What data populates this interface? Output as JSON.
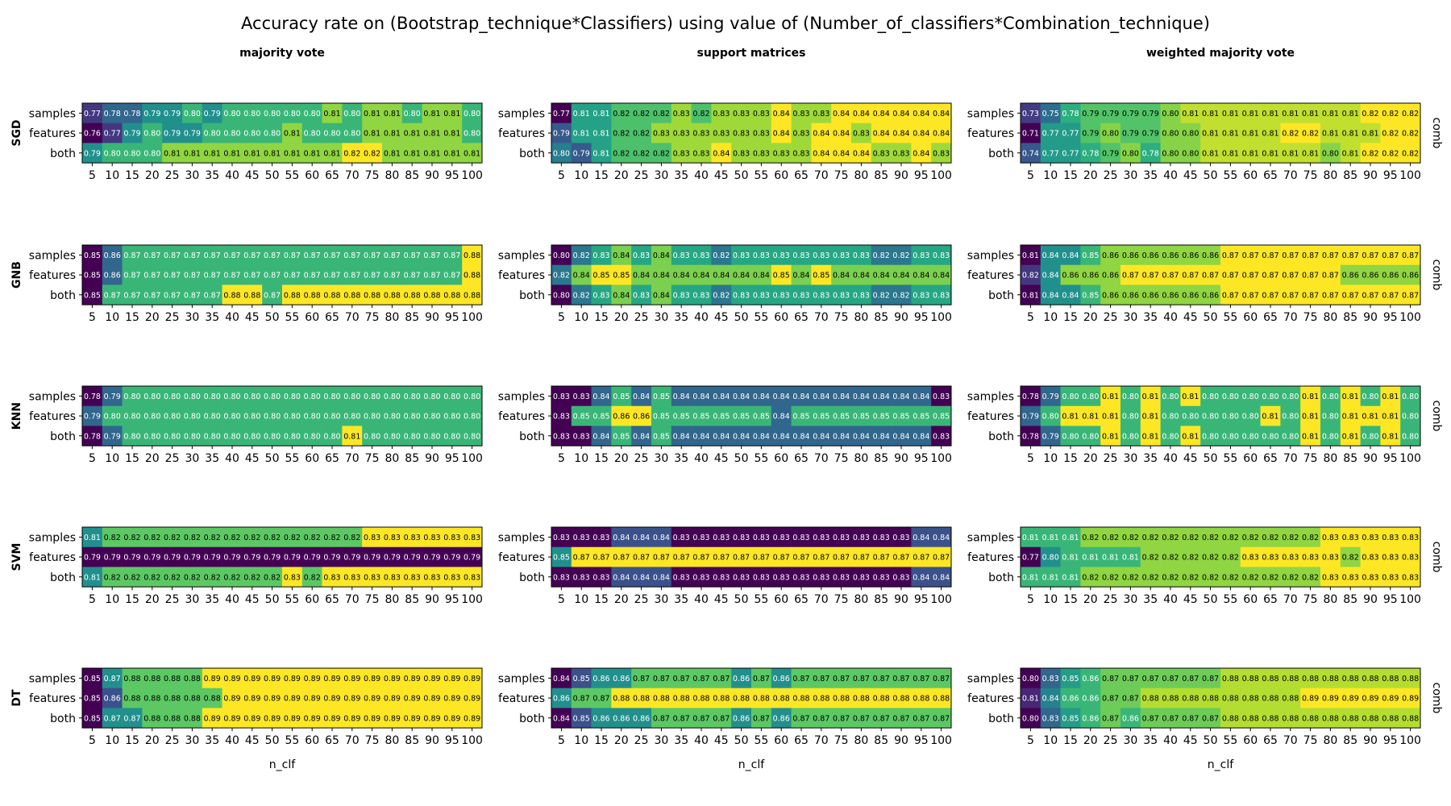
{
  "figure": {
    "title": "Accuracy rate on (Bootstrap_technique*Classifiers) using value of (Number_of_classifiers*Combination_technique)",
    "right_label": "comb",
    "colormap": "viridis"
  },
  "chart_data": {
    "type": "heatmap",
    "columns": [
      "majority vote",
      "support matrices",
      "weighted majority vote"
    ],
    "rows": [
      "SGD",
      "GNB",
      "KNN",
      "SVM",
      "DT"
    ],
    "y_categories": [
      "samples",
      "features",
      "both"
    ],
    "x_categories": [
      "5",
      "10",
      "15",
      "20",
      "25",
      "30",
      "35",
      "40",
      "45",
      "50",
      "55",
      "60",
      "65",
      "70",
      "75",
      "80",
      "85",
      "90",
      "95",
      "100"
    ],
    "xlabel": "n_clf",
    "panels": [
      {
        "row": "SGD",
        "column": "majority vote",
        "values": [
          [
            0.77,
            0.78,
            0.78,
            0.79,
            0.79,
            0.8,
            0.79,
            0.8,
            0.8,
            0.8,
            0.8,
            0.8,
            0.81,
            0.8,
            0.81,
            0.81,
            0.8,
            0.81,
            0.81,
            0.8
          ],
          [
            0.76,
            0.77,
            0.79,
            0.8,
            0.79,
            0.79,
            0.8,
            0.8,
            0.8,
            0.8,
            0.81,
            0.8,
            0.8,
            0.8,
            0.81,
            0.81,
            0.81,
            0.81,
            0.81,
            0.8
          ],
          [
            0.79,
            0.8,
            0.8,
            0.8,
            0.81,
            0.81,
            0.81,
            0.81,
            0.81,
            0.81,
            0.81,
            0.81,
            0.81,
            0.82,
            0.82,
            0.81,
            0.81,
            0.81,
            0.81,
            0.81
          ]
        ]
      },
      {
        "row": "SGD",
        "column": "support matrices",
        "values": [
          [
            0.77,
            0.81,
            0.81,
            0.82,
            0.82,
            0.82,
            0.83,
            0.82,
            0.83,
            0.83,
            0.83,
            0.84,
            0.83,
            0.83,
            0.84,
            0.84,
            0.84,
            0.84,
            0.84,
            0.84
          ],
          [
            0.79,
            0.81,
            0.81,
            0.82,
            0.82,
            0.83,
            0.83,
            0.83,
            0.83,
            0.83,
            0.83,
            0.84,
            0.83,
            0.84,
            0.84,
            0.83,
            0.84,
            0.84,
            0.84,
            0.84
          ],
          [
            0.8,
            0.79,
            0.81,
            0.82,
            0.82,
            0.82,
            0.83,
            0.83,
            0.84,
            0.83,
            0.83,
            0.83,
            0.83,
            0.84,
            0.84,
            0.84,
            0.83,
            0.83,
            0.84,
            0.83
          ]
        ]
      },
      {
        "row": "SGD",
        "column": "weighted majority vote",
        "values": [
          [
            0.73,
            0.75,
            0.78,
            0.79,
            0.79,
            0.79,
            0.79,
            0.8,
            0.81,
            0.81,
            0.81,
            0.81,
            0.81,
            0.81,
            0.81,
            0.81,
            0.81,
            0.82,
            0.82,
            0.82
          ],
          [
            0.71,
            0.77,
            0.77,
            0.79,
            0.8,
            0.79,
            0.79,
            0.8,
            0.8,
            0.81,
            0.81,
            0.81,
            0.81,
            0.82,
            0.82,
            0.81,
            0.81,
            0.81,
            0.82,
            0.82
          ],
          [
            0.74,
            0.77,
            0.77,
            0.78,
            0.79,
            0.8,
            0.78,
            0.8,
            0.8,
            0.81,
            0.81,
            0.81,
            0.81,
            0.81,
            0.81,
            0.8,
            0.81,
            0.82,
            0.82,
            0.82
          ]
        ]
      },
      {
        "row": "GNB",
        "column": "majority vote",
        "values": [
          [
            0.85,
            0.86,
            0.87,
            0.87,
            0.87,
            0.87,
            0.87,
            0.87,
            0.87,
            0.87,
            0.87,
            0.87,
            0.87,
            0.87,
            0.87,
            0.87,
            0.87,
            0.87,
            0.87,
            0.88
          ],
          [
            0.85,
            0.86,
            0.87,
            0.87,
            0.87,
            0.87,
            0.87,
            0.87,
            0.87,
            0.87,
            0.87,
            0.87,
            0.87,
            0.87,
            0.87,
            0.87,
            0.87,
            0.87,
            0.87,
            0.88
          ],
          [
            0.85,
            0.87,
            0.87,
            0.87,
            0.87,
            0.87,
            0.87,
            0.88,
            0.88,
            0.87,
            0.88,
            0.88,
            0.88,
            0.88,
            0.88,
            0.88,
            0.88,
            0.88,
            0.88,
            0.88
          ]
        ]
      },
      {
        "row": "GNB",
        "column": "support matrices",
        "values": [
          [
            0.8,
            0.82,
            0.83,
            0.84,
            0.83,
            0.84,
            0.83,
            0.83,
            0.82,
            0.83,
            0.83,
            0.83,
            0.83,
            0.83,
            0.83,
            0.83,
            0.82,
            0.82,
            0.83,
            0.83
          ],
          [
            0.82,
            0.84,
            0.85,
            0.85,
            0.84,
            0.84,
            0.84,
            0.84,
            0.84,
            0.84,
            0.84,
            0.85,
            0.84,
            0.85,
            0.84,
            0.84,
            0.84,
            0.84,
            0.84,
            0.84
          ],
          [
            0.8,
            0.82,
            0.83,
            0.84,
            0.83,
            0.84,
            0.83,
            0.83,
            0.82,
            0.83,
            0.83,
            0.83,
            0.83,
            0.83,
            0.83,
            0.83,
            0.82,
            0.82,
            0.83,
            0.83
          ]
        ]
      },
      {
        "row": "GNB",
        "column": "weighted majority vote",
        "values": [
          [
            0.81,
            0.84,
            0.84,
            0.85,
            0.86,
            0.86,
            0.86,
            0.86,
            0.86,
            0.86,
            0.87,
            0.87,
            0.87,
            0.87,
            0.87,
            0.87,
            0.87,
            0.87,
            0.87,
            0.87
          ],
          [
            0.82,
            0.84,
            0.86,
            0.86,
            0.86,
            0.87,
            0.87,
            0.87,
            0.87,
            0.87,
            0.87,
            0.87,
            0.87,
            0.87,
            0.87,
            0.87,
            0.86,
            0.86,
            0.86,
            0.86
          ],
          [
            0.81,
            0.84,
            0.84,
            0.85,
            0.86,
            0.86,
            0.86,
            0.86,
            0.86,
            0.86,
            0.87,
            0.87,
            0.87,
            0.87,
            0.87,
            0.87,
            0.87,
            0.87,
            0.87,
            0.87
          ]
        ]
      },
      {
        "row": "KNN",
        "column": "majority vote",
        "values": [
          [
            0.78,
            0.79,
            0.8,
            0.8,
            0.8,
            0.8,
            0.8,
            0.8,
            0.8,
            0.8,
            0.8,
            0.8,
            0.8,
            0.8,
            0.8,
            0.8,
            0.8,
            0.8,
            0.8,
            0.8
          ],
          [
            0.79,
            0.8,
            0.8,
            0.8,
            0.8,
            0.8,
            0.8,
            0.8,
            0.8,
            0.8,
            0.8,
            0.8,
            0.8,
            0.8,
            0.8,
            0.8,
            0.8,
            0.8,
            0.8,
            0.8
          ],
          [
            0.78,
            0.79,
            0.8,
            0.8,
            0.8,
            0.8,
            0.8,
            0.8,
            0.8,
            0.8,
            0.8,
            0.8,
            0.8,
            0.81,
            0.8,
            0.8,
            0.8,
            0.8,
            0.8,
            0.8
          ]
        ]
      },
      {
        "row": "KNN",
        "column": "support matrices",
        "values": [
          [
            0.83,
            0.83,
            0.84,
            0.85,
            0.84,
            0.85,
            0.84,
            0.84,
            0.84,
            0.84,
            0.84,
            0.84,
            0.84,
            0.84,
            0.84,
            0.84,
            0.84,
            0.84,
            0.84,
            0.83
          ],
          [
            0.83,
            0.85,
            0.85,
            0.86,
            0.86,
            0.85,
            0.85,
            0.85,
            0.85,
            0.85,
            0.85,
            0.84,
            0.85,
            0.85,
            0.85,
            0.85,
            0.85,
            0.85,
            0.85,
            0.85
          ],
          [
            0.83,
            0.83,
            0.84,
            0.85,
            0.84,
            0.85,
            0.84,
            0.84,
            0.84,
            0.84,
            0.84,
            0.84,
            0.84,
            0.84,
            0.84,
            0.84,
            0.84,
            0.84,
            0.84,
            0.83
          ]
        ]
      },
      {
        "row": "KNN",
        "column": "weighted majority vote",
        "values": [
          [
            0.78,
            0.79,
            0.8,
            0.8,
            0.81,
            0.8,
            0.81,
            0.8,
            0.81,
            0.8,
            0.8,
            0.8,
            0.8,
            0.8,
            0.81,
            0.8,
            0.81,
            0.8,
            0.81,
            0.8
          ],
          [
            0.79,
            0.8,
            0.81,
            0.81,
            0.81,
            0.8,
            0.81,
            0.8,
            0.8,
            0.8,
            0.8,
            0.8,
            0.81,
            0.8,
            0.81,
            0.8,
            0.81,
            0.81,
            0.81,
            0.8
          ],
          [
            0.78,
            0.79,
            0.8,
            0.8,
            0.81,
            0.8,
            0.81,
            0.8,
            0.81,
            0.8,
            0.8,
            0.8,
            0.8,
            0.8,
            0.81,
            0.8,
            0.81,
            0.8,
            0.81,
            0.8
          ]
        ]
      },
      {
        "row": "SVM",
        "column": "majority vote",
        "values": [
          [
            0.81,
            0.82,
            0.82,
            0.82,
            0.82,
            0.82,
            0.82,
            0.82,
            0.82,
            0.82,
            0.82,
            0.82,
            0.82,
            0.82,
            0.83,
            0.83,
            0.83,
            0.83,
            0.83,
            0.83
          ],
          [
            0.79,
            0.79,
            0.79,
            0.79,
            0.79,
            0.79,
            0.79,
            0.79,
            0.79,
            0.79,
            0.79,
            0.79,
            0.79,
            0.79,
            0.79,
            0.79,
            0.79,
            0.79,
            0.79,
            0.79
          ],
          [
            0.81,
            0.82,
            0.82,
            0.82,
            0.82,
            0.82,
            0.82,
            0.82,
            0.82,
            0.82,
            0.83,
            0.82,
            0.83,
            0.83,
            0.83,
            0.83,
            0.83,
            0.83,
            0.83,
            0.83
          ]
        ]
      },
      {
        "row": "SVM",
        "column": "support matrices",
        "values": [
          [
            0.83,
            0.83,
            0.83,
            0.84,
            0.84,
            0.84,
            0.83,
            0.83,
            0.83,
            0.83,
            0.83,
            0.83,
            0.83,
            0.83,
            0.83,
            0.83,
            0.83,
            0.83,
            0.84,
            0.84
          ],
          [
            0.85,
            0.87,
            0.87,
            0.87,
            0.87,
            0.87,
            0.87,
            0.87,
            0.87,
            0.87,
            0.87,
            0.87,
            0.87,
            0.87,
            0.87,
            0.87,
            0.87,
            0.87,
            0.87,
            0.87
          ],
          [
            0.83,
            0.83,
            0.83,
            0.84,
            0.84,
            0.84,
            0.83,
            0.83,
            0.83,
            0.83,
            0.83,
            0.83,
            0.83,
            0.83,
            0.83,
            0.83,
            0.83,
            0.83,
            0.84,
            0.84
          ]
        ]
      },
      {
        "row": "SVM",
        "column": "weighted majority vote",
        "values": [
          [
            0.81,
            0.81,
            0.81,
            0.82,
            0.82,
            0.82,
            0.82,
            0.82,
            0.82,
            0.82,
            0.82,
            0.82,
            0.82,
            0.82,
            0.82,
            0.83,
            0.83,
            0.83,
            0.83,
            0.83
          ],
          [
            0.77,
            0.8,
            0.81,
            0.81,
            0.81,
            0.81,
            0.82,
            0.82,
            0.82,
            0.82,
            0.82,
            0.83,
            0.83,
            0.83,
            0.83,
            0.83,
            0.82,
            0.83,
            0.83,
            0.83
          ],
          [
            0.81,
            0.81,
            0.81,
            0.82,
            0.82,
            0.82,
            0.82,
            0.82,
            0.82,
            0.82,
            0.82,
            0.82,
            0.82,
            0.82,
            0.82,
            0.83,
            0.83,
            0.83,
            0.83,
            0.83
          ]
        ]
      },
      {
        "row": "DT",
        "column": "majority vote",
        "values": [
          [
            0.85,
            0.87,
            0.88,
            0.88,
            0.88,
            0.88,
            0.89,
            0.89,
            0.89,
            0.89,
            0.89,
            0.89,
            0.89,
            0.89,
            0.89,
            0.89,
            0.89,
            0.89,
            0.89,
            0.89
          ],
          [
            0.85,
            0.86,
            0.88,
            0.88,
            0.88,
            0.88,
            0.88,
            0.89,
            0.89,
            0.89,
            0.89,
            0.89,
            0.89,
            0.89,
            0.89,
            0.89,
            0.89,
            0.89,
            0.89,
            0.89
          ],
          [
            0.85,
            0.87,
            0.87,
            0.88,
            0.88,
            0.88,
            0.89,
            0.89,
            0.89,
            0.89,
            0.89,
            0.89,
            0.89,
            0.89,
            0.89,
            0.89,
            0.89,
            0.89,
            0.89,
            0.89
          ]
        ]
      },
      {
        "row": "DT",
        "column": "support matrices",
        "values": [
          [
            0.84,
            0.85,
            0.86,
            0.86,
            0.87,
            0.87,
            0.87,
            0.87,
            0.87,
            0.86,
            0.87,
            0.86,
            0.87,
            0.87,
            0.87,
            0.87,
            0.87,
            0.87,
            0.87,
            0.87
          ],
          [
            0.86,
            0.87,
            0.87,
            0.88,
            0.88,
            0.88,
            0.88,
            0.88,
            0.88,
            0.88,
            0.88,
            0.88,
            0.88,
            0.88,
            0.88,
            0.88,
            0.88,
            0.88,
            0.88,
            0.88
          ],
          [
            0.84,
            0.85,
            0.86,
            0.86,
            0.86,
            0.87,
            0.87,
            0.87,
            0.87,
            0.86,
            0.87,
            0.86,
            0.87,
            0.87,
            0.87,
            0.87,
            0.87,
            0.87,
            0.87,
            0.87
          ]
        ]
      },
      {
        "row": "DT",
        "column": "weighted majority vote",
        "values": [
          [
            0.8,
            0.83,
            0.85,
            0.86,
            0.87,
            0.87,
            0.87,
            0.87,
            0.87,
            0.87,
            0.88,
            0.88,
            0.88,
            0.88,
            0.88,
            0.88,
            0.88,
            0.88,
            0.88,
            0.88
          ],
          [
            0.81,
            0.84,
            0.86,
            0.86,
            0.87,
            0.87,
            0.88,
            0.88,
            0.88,
            0.88,
            0.88,
            0.88,
            0.88,
            0.88,
            0.89,
            0.89,
            0.89,
            0.89,
            0.89,
            0.89
          ],
          [
            0.8,
            0.83,
            0.85,
            0.86,
            0.87,
            0.86,
            0.87,
            0.87,
            0.87,
            0.87,
            0.88,
            0.88,
            0.88,
            0.88,
            0.88,
            0.88,
            0.88,
            0.88,
            0.88,
            0.88
          ]
        ]
      }
    ]
  }
}
